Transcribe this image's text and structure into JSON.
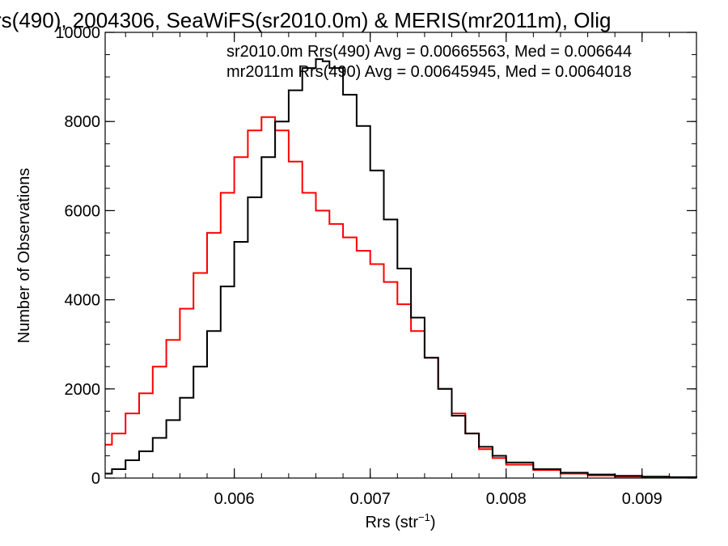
{
  "chart_data": {
    "type": "line",
    "title": "rs(490), 2004306, SeaWiFS(sr2010.0m) & MERIS(mr2011m), Olig",
    "xlabel": "Rrs (str",
    "xlabel_sup": "−1",
    "xlabel_end": ")",
    "ylabel": "Number of Observations",
    "xlim": [
      0.00505,
      0.0094
    ],
    "ylim": [
      0,
      10000
    ],
    "x_ticks": [
      0.006,
      0.007,
      0.008,
      0.009
    ],
    "x_tick_labels": [
      "0.006",
      "0.007",
      "0.008",
      "0.009"
    ],
    "y_ticks": [
      0,
      2000,
      4000,
      6000,
      8000,
      10000
    ],
    "y_tick_labels": [
      "0",
      "2000",
      "4000",
      "6000",
      "8000",
      "10000"
    ],
    "x_minor_step": 0.0002,
    "y_minor_step": 500,
    "grid": false,
    "legend_position": "top-right",
    "step_style": "histogram",
    "series": [
      {
        "name": "sr2010.0m",
        "color": "#000000",
        "legend_text": "sr2010.0m Rrs(490) Avg = 0.00665563, Med = 0.006644",
        "x": [
          0.00505,
          0.0051,
          0.0052,
          0.0053,
          0.0054,
          0.0055,
          0.0056,
          0.0057,
          0.0058,
          0.0059,
          0.006,
          0.0061,
          0.0062,
          0.0063,
          0.0064,
          0.0065,
          0.0066,
          0.00665,
          0.0067,
          0.0068,
          0.0069,
          0.007,
          0.0071,
          0.0072,
          0.0073,
          0.0074,
          0.0075,
          0.0076,
          0.0077,
          0.0078,
          0.0079,
          0.008,
          0.0082,
          0.0084,
          0.0086,
          0.0088,
          0.009,
          0.0092,
          0.0094
        ],
        "y": [
          100,
          200,
          400,
          600,
          900,
          1300,
          1800,
          2500,
          3300,
          4300,
          5300,
          6300,
          7200,
          8000,
          8700,
          9200,
          9400,
          9350,
          9200,
          8600,
          7900,
          6900,
          5800,
          4700,
          3600,
          2700,
          2000,
          1400,
          1000,
          700,
          500,
          350,
          200,
          120,
          80,
          50,
          30,
          20,
          10
        ]
      },
      {
        "name": "mr2011m",
        "color": "#ff0000",
        "legend_text": "mr2011m Rrs(490) Avg = 0.00645945, Med = 0.0064018",
        "x": [
          0.00505,
          0.0051,
          0.0052,
          0.0053,
          0.0054,
          0.0055,
          0.0056,
          0.0057,
          0.0058,
          0.0059,
          0.006,
          0.0061,
          0.0062,
          0.0063,
          0.0064,
          0.0065,
          0.0066,
          0.0067,
          0.0068,
          0.0069,
          0.007,
          0.0071,
          0.0072,
          0.0073,
          0.0074,
          0.0075,
          0.0076,
          0.0077,
          0.0078,
          0.0079,
          0.008,
          0.0082,
          0.0084,
          0.0086,
          0.0088,
          0.009,
          0.0092,
          0.0094
        ],
        "y": [
          750,
          1000,
          1450,
          1900,
          2500,
          3100,
          3800,
          4600,
          5500,
          6400,
          7200,
          7800,
          8100,
          7800,
          7100,
          6400,
          6000,
          5700,
          5400,
          5100,
          4800,
          4400,
          3900,
          3300,
          2700,
          2000,
          1450,
          1000,
          650,
          450,
          300,
          180,
          100,
          60,
          30,
          20,
          10,
          5
        ]
      }
    ]
  }
}
